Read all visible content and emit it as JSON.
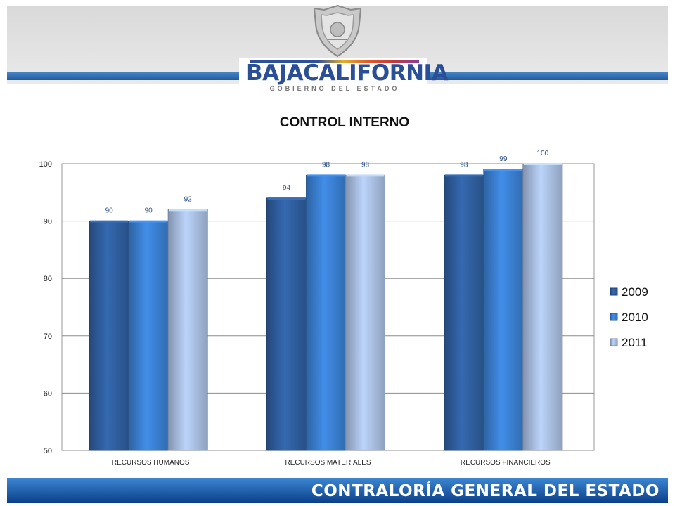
{
  "brand": {
    "name_part1": "BAJA",
    "name_part2": "CALIFORNIA",
    "tagline": "GOBIERNO DEL ESTADO"
  },
  "footer": {
    "text": "CONTRALORÍA GENERAL DEL ESTADO"
  },
  "colors": {
    "header_stripe": "#1f5b9e",
    "footer": "#0b3e88",
    "series_2009": "#2f5e9e",
    "series_2010": "#3a7fd0",
    "series_2011": "#a8bde0"
  },
  "chart_data": {
    "type": "bar",
    "title": "CONTROL INTERNO",
    "categories": [
      "RECURSOS HUMANOS",
      "RECURSOS MATERIALES",
      "RECURSOS FINANCIEROS"
    ],
    "series": [
      {
        "name": "2009",
        "values": [
          90,
          94,
          98
        ],
        "color": "#2f5e9e"
      },
      {
        "name": "2010",
        "values": [
          90,
          98,
          99
        ],
        "color": "#3a7fd0"
      },
      {
        "name": "2011",
        "values": [
          92,
          98,
          100
        ],
        "color": "#a8bde0"
      }
    ],
    "ylim": [
      50,
      100
    ],
    "yticks": [
      50,
      60,
      70,
      80,
      90,
      100
    ],
    "grid": true,
    "legend": "right"
  }
}
